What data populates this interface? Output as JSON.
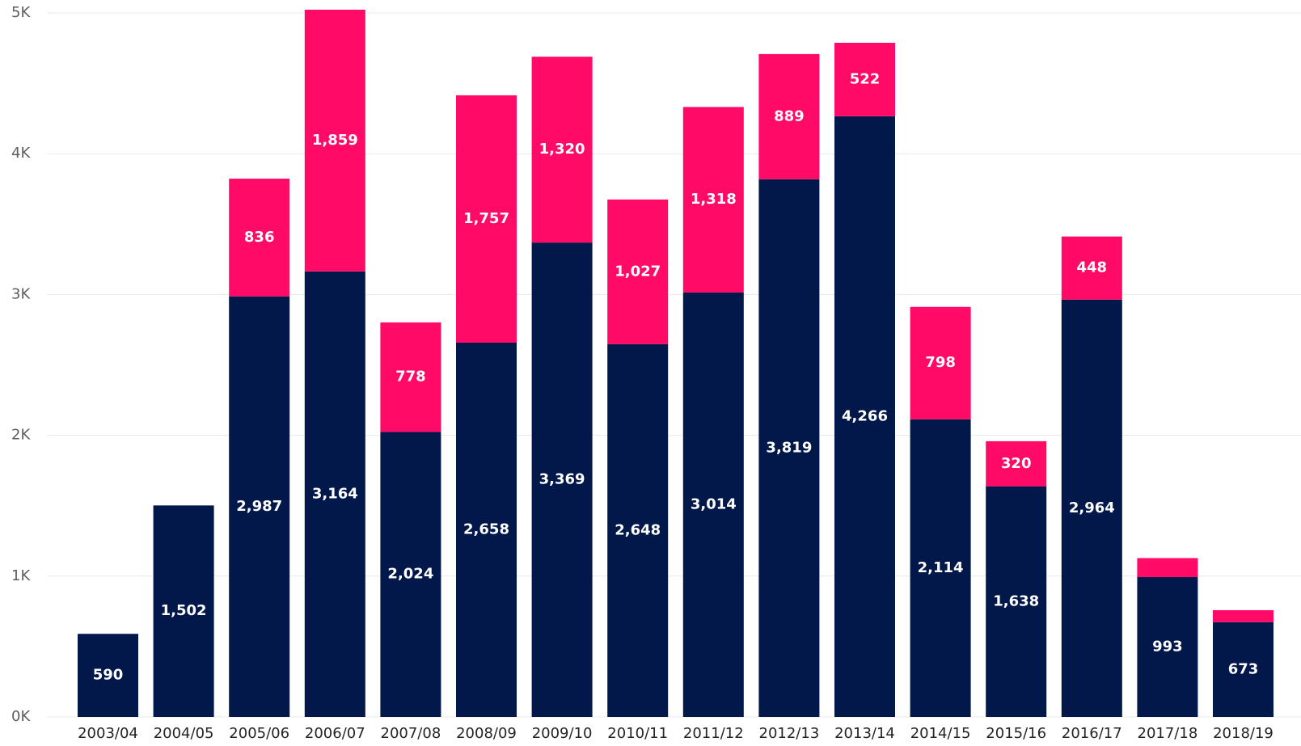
{
  "chart_data": {
    "type": "bar",
    "stacked": true,
    "categories": [
      "2003/04",
      "2004/05",
      "2005/06",
      "2006/07",
      "2007/08",
      "2008/09",
      "2009/10",
      "2010/11",
      "2011/12",
      "2012/13",
      "2013/14",
      "2014/15",
      "2015/16",
      "2016/17",
      "2017/18",
      "2018/19"
    ],
    "series": [
      {
        "color": "#02184a",
        "values": [
          590,
          1502,
          2987,
          3164,
          2024,
          2658,
          3369,
          2648,
          3014,
          3819,
          4266,
          2114,
          1638,
          2964,
          993,
          673
        ],
        "labels": [
          "590",
          "1,502",
          "2,987",
          "3,164",
          "2,024",
          "2,658",
          "3,369",
          "2,648",
          "3,014",
          "3,819",
          "4,266",
          "2,114",
          "1,638",
          "2,964",
          "993",
          "673"
        ]
      },
      {
        "color": "#ff0a66",
        "values": [
          0,
          0,
          836,
          1859,
          778,
          1757,
          1320,
          1027,
          1318,
          889,
          522,
          798,
          320,
          448,
          135,
          85
        ],
        "labels": [
          "",
          "",
          "836",
          "1,859",
          "778",
          "1,757",
          "1,320",
          "1,027",
          "1,318",
          "889",
          "522",
          "798",
          "320",
          "448",
          "",
          ""
        ]
      }
    ],
    "yticks": [
      0,
      1000,
      2000,
      3000,
      4000,
      5000
    ],
    "ytick_labels": [
      "0K",
      "1K",
      "2K",
      "3K",
      "4K",
      "5K"
    ],
    "ylim": [
      0,
      5000
    ],
    "grid": true,
    "legend": "none",
    "xlabel": "",
    "ylabel": "",
    "title": ""
  }
}
